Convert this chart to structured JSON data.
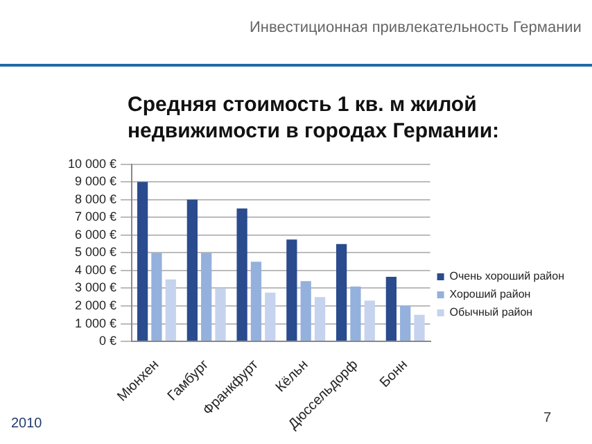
{
  "chart_data": {
    "type": "bar",
    "title": "Средняя стоимость 1 кв. м жилой недвижимости в городах Германии:",
    "subtitle": "Инвестиционная привлекательность Германии",
    "categories": [
      "Мюнхен",
      "Гамбург",
      "Франкфурт",
      "Кёльн",
      "Дюссельдорф",
      "Бонн"
    ],
    "series": [
      {
        "name": "Очень хороший район",
        "color": "#2a4b8d",
        "values": [
          9000,
          8000,
          7500,
          5750,
          5500,
          3650
        ]
      },
      {
        "name": "Хороший район",
        "color": "#94b0dc",
        "values": [
          5000,
          5000,
          4500,
          3400,
          3100,
          2000
        ]
      },
      {
        "name": "Обычный район",
        "color": "#c6d3ee",
        "values": [
          3500,
          3000,
          2750,
          2500,
          2300,
          1500
        ]
      }
    ],
    "ylim": [
      0,
      10000
    ],
    "yticks": [
      {
        "value": 0,
        "label": "0 €"
      },
      {
        "value": 1000,
        "label": "1 000 €"
      },
      {
        "value": 2000,
        "label": "2 000 €"
      },
      {
        "value": 3000,
        "label": "3 000 €"
      },
      {
        "value": 4000,
        "label": "4 000 €"
      },
      {
        "value": 5000,
        "label": "5 000 €"
      },
      {
        "value": 6000,
        "label": "6 000 €"
      },
      {
        "value": 7000,
        "label": "7 000 €"
      },
      {
        "value": 8000,
        "label": "8 000 €"
      },
      {
        "value": 9000,
        "label": "9 000 €"
      },
      {
        "value": 10000,
        "label": "10 000 €"
      }
    ],
    "grid": "y",
    "legend": "right",
    "annotations": [
      "2010",
      "7"
    ]
  }
}
